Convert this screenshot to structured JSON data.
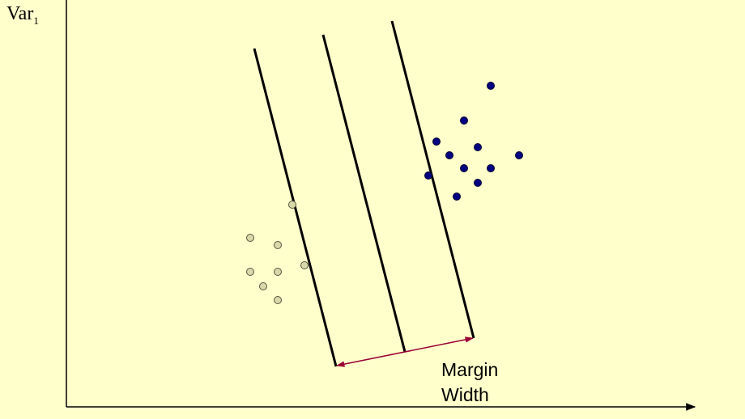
{
  "axis_label": {
    "name": "Var",
    "subscript": "1"
  },
  "margin_label": {
    "line1": "Margin",
    "line2": "Width"
  },
  "colors": {
    "background": "#ffffcc",
    "class_a_fill": "#000080",
    "class_b_fill": "#d8d8a8",
    "margin_arrow": "#990033",
    "lines": "#000000"
  }
}
